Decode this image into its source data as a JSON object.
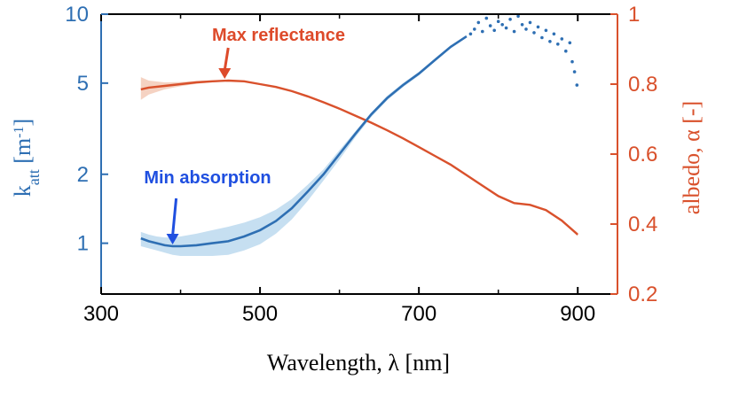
{
  "chart_data": {
    "type": "line",
    "colors": {
      "katt": "#2e6fb3",
      "katt_band": "#bcd9ee",
      "albedo": "#d9512c",
      "albedo_band": "#f3c7b3",
      "min_annot": "#1f4fe0",
      "max_annot": "#dd4a2a"
    },
    "x_axis": {
      "label": "Wavelength, λ [nm]",
      "lim": [
        300,
        950
      ],
      "ticks": [
        300,
        500,
        700,
        900
      ],
      "tick_labels": [
        "300",
        "500",
        "700",
        "900"
      ]
    },
    "left_axis": {
      "label_main": "k",
      "label_sub": "att",
      "label_unit_open": " [m",
      "label_unit_sup": "-1",
      "label_unit_close": "]",
      "scale": "log",
      "lim": [
        0.6,
        10
      ],
      "ticks": [
        1,
        2,
        5,
        10
      ],
      "tick_labels": [
        "1",
        "2",
        "5",
        "10"
      ]
    },
    "right_axis": {
      "label": "albedo, α [-]",
      "scale": "linear",
      "lim": [
        0.2,
        1.0
      ],
      "ticks": [
        0.2,
        0.4,
        0.6,
        0.8,
        1.0
      ],
      "tick_labels": [
        "0.2",
        "0.4",
        "0.6",
        "0.8",
        "1"
      ]
    },
    "series": [
      {
        "name": "k_att",
        "axis": "left",
        "x": [
          350,
          360,
          370,
          380,
          390,
          400,
          420,
          440,
          460,
          480,
          500,
          520,
          540,
          560,
          580,
          600,
          620,
          640,
          660,
          680,
          700,
          720,
          740,
          760
        ],
        "y": [
          1.05,
          1.02,
          1.0,
          0.98,
          0.97,
          0.97,
          0.98,
          1.0,
          1.02,
          1.07,
          1.14,
          1.25,
          1.42,
          1.68,
          2.0,
          2.45,
          3.0,
          3.65,
          4.3,
          4.9,
          5.5,
          6.3,
          7.2,
          8.0
        ],
        "band_upper": [
          1.12,
          1.09,
          1.07,
          1.06,
          1.06,
          1.07,
          1.1,
          1.14,
          1.18,
          1.23,
          1.3,
          1.4,
          1.56,
          1.8,
          2.1,
          2.55,
          3.08,
          3.72,
          4.4,
          5.0,
          5.6,
          6.4,
          7.3,
          8.1
        ],
        "band_lower": [
          0.97,
          0.95,
          0.93,
          0.91,
          0.89,
          0.88,
          0.88,
          0.88,
          0.89,
          0.93,
          0.99,
          1.1,
          1.27,
          1.53,
          1.88,
          2.32,
          2.9,
          3.55,
          4.2,
          4.8,
          5.4,
          6.2,
          7.1,
          7.9
        ]
      },
      {
        "name": "k_att_scatter",
        "axis": "left",
        "x": [
          765,
          770,
          775,
          780,
          785,
          790,
          795,
          800,
          805,
          810,
          815,
          820,
          825,
          830,
          835,
          840,
          845,
          850,
          855,
          860,
          865,
          870,
          875,
          880,
          885,
          890,
          893,
          896,
          899
        ],
        "y": [
          8.2,
          8.6,
          9.2,
          8.4,
          9.6,
          8.9,
          8.5,
          9.3,
          9.0,
          8.7,
          9.5,
          8.4,
          9.8,
          9.0,
          8.6,
          9.2,
          8.3,
          8.8,
          7.9,
          8.5,
          7.6,
          8.2,
          7.4,
          7.8,
          6.9,
          7.5,
          6.2,
          5.6,
          4.9
        ]
      },
      {
        "name": "albedo",
        "axis": "right",
        "x": [
          350,
          360,
          380,
          400,
          420,
          440,
          460,
          480,
          500,
          520,
          540,
          560,
          580,
          600,
          620,
          640,
          660,
          680,
          700,
          720,
          740,
          760,
          780,
          800,
          820,
          840,
          860,
          880,
          900
        ],
        "y": [
          0.785,
          0.79,
          0.795,
          0.8,
          0.805,
          0.808,
          0.81,
          0.808,
          0.8,
          0.792,
          0.78,
          0.765,
          0.748,
          0.73,
          0.71,
          0.69,
          0.668,
          0.645,
          0.62,
          0.595,
          0.57,
          0.54,
          0.51,
          0.48,
          0.46,
          0.455,
          0.44,
          0.41,
          0.37
        ],
        "band_upper": [
          0.82,
          0.81,
          0.805,
          0.806,
          0.809,
          0.811,
          0.812,
          0.81,
          0.802,
          0.794,
          0.782,
          0.767,
          0.75,
          0.732,
          0.712,
          0.692,
          0.67,
          0.647,
          0.622,
          0.597,
          0.572,
          0.542,
          0.512,
          0.482,
          0.462,
          0.457,
          0.442,
          0.413,
          0.375
        ],
        "band_lower": [
          0.755,
          0.77,
          0.785,
          0.794,
          0.801,
          0.805,
          0.808,
          0.806,
          0.798,
          0.79,
          0.778,
          0.763,
          0.746,
          0.728,
          0.708,
          0.688,
          0.666,
          0.643,
          0.618,
          0.593,
          0.568,
          0.538,
          0.508,
          0.478,
          0.458,
          0.453,
          0.438,
          0.407,
          0.365
        ]
      }
    ],
    "annotations": [
      {
        "text": "Min absorption",
        "target_x": 390,
        "target_y": 0.97,
        "axis": "left"
      },
      {
        "text": "Max reflectance",
        "target_x": 460,
        "target_y": 0.81,
        "axis": "right"
      }
    ]
  }
}
